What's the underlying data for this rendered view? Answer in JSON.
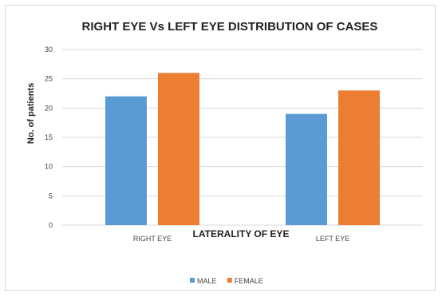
{
  "chart_data": {
    "type": "bar",
    "title": "RIGHT EYE Vs LEFT EYE DISTRIBUTION OF CASES",
    "xlabel": "LATERALITY OF EYE",
    "ylabel": "No. of patients",
    "categories": [
      "RIGHT EYE",
      "LEFT EYE"
    ],
    "series": [
      {
        "name": "MALE",
        "values": [
          22,
          19
        ],
        "color": "#5b9bd5"
      },
      {
        "name": "FEMALE",
        "values": [
          26,
          23
        ],
        "color": "#ed7d31"
      }
    ],
    "ylim": [
      0,
      30
    ],
    "yticks": [
      0,
      5,
      10,
      15,
      20,
      25,
      30
    ],
    "grid": true,
    "legend": "bottom"
  }
}
